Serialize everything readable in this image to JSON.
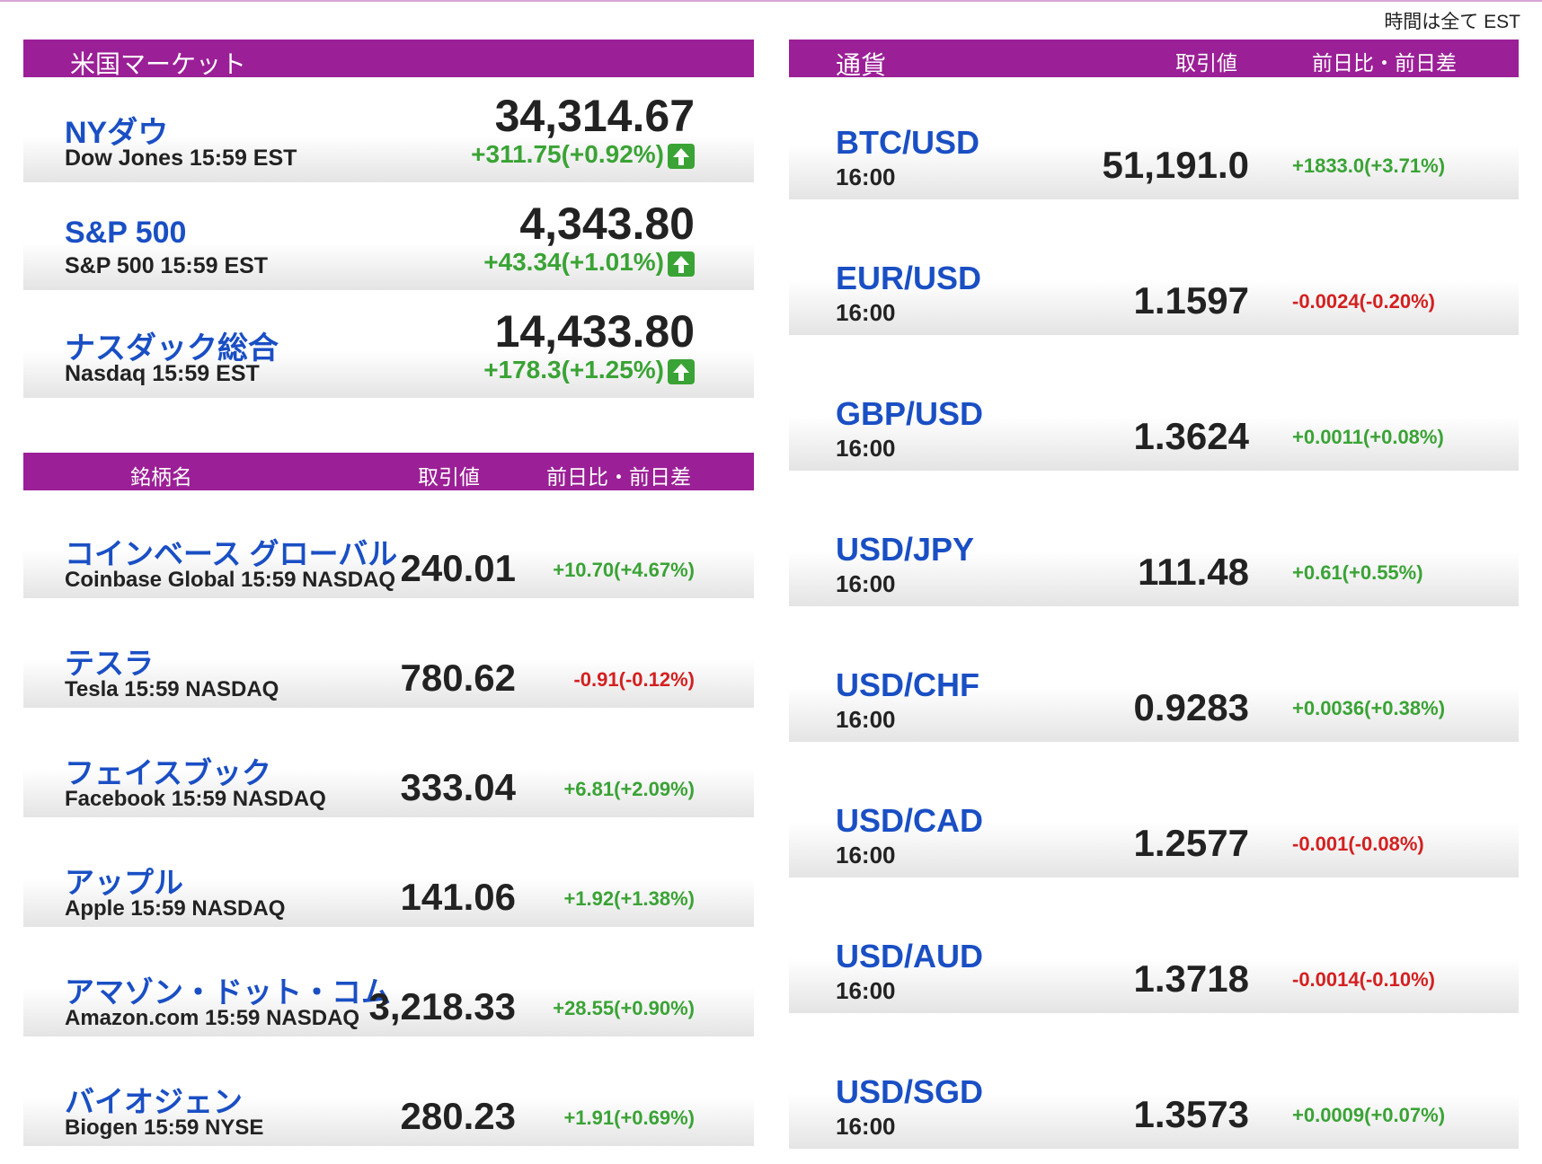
{
  "note": "時間は全て EST",
  "us_market": {
    "header": "米国マーケット",
    "items": [
      {
        "name": "NYダウ",
        "sub": "Dow Jones 15:59 EST",
        "value": "34,314.67",
        "change": "+311.75(+0.92%)"
      },
      {
        "name": "S&P 500",
        "sub": "S&P 500 15:59 EST",
        "value": "4,343.80",
        "change": "+43.34(+1.01%)"
      },
      {
        "name": "ナスダック総合",
        "sub": "Nasdaq 15:59 EST",
        "value": "14,433.80",
        "change": "+178.3(+1.25%)"
      }
    ]
  },
  "stocks": {
    "headers": [
      "銘柄名",
      "取引値",
      "前日比・前日差"
    ],
    "rows": [
      {
        "name": "コインベース グローバル",
        "sub": "Coinbase Global 15:59  NASDAQ",
        "value": "240.01",
        "change": "+10.70(+4.67%)"
      },
      {
        "name": "テスラ",
        "sub": "Tesla 15:59  NASDAQ",
        "value": "780.62",
        "change": "-0.91(-0.12%)"
      },
      {
        "name": "フェイスブック",
        "sub": "Facebook 15:59  NASDAQ",
        "value": "333.04",
        "change": "+6.81(+2.09%)"
      },
      {
        "name": "アップル",
        "sub": "Apple 15:59  NASDAQ",
        "value": "141.06",
        "change": "+1.92(+1.38%)"
      },
      {
        "name": "アマゾン・ドット・コム",
        "sub": "Amazon.com 15:59  NASDAQ",
        "value": "3,218.33",
        "change": "+28.55(+0.90%)"
      },
      {
        "name": "バイオジェン",
        "sub": "Biogen 15:59  NYSE",
        "value": "280.23",
        "change": "+1.91(+0.69%)"
      }
    ]
  },
  "currency": {
    "headers": [
      "通貨",
      "取引値",
      "前日比・前日差"
    ],
    "rows": [
      {
        "name": "BTC/USD",
        "sub": "16:00",
        "value": "51,191.0",
        "change": "+1833.0(+3.71%)"
      },
      {
        "name": "EUR/USD",
        "sub": "16:00",
        "value": "1.1597",
        "change": "-0.0024(-0.20%)"
      },
      {
        "name": "GBP/USD",
        "sub": "16:00",
        "value": "1.3624",
        "change": "+0.0011(+0.08%)"
      },
      {
        "name": "USD/JPY",
        "sub": "16:00",
        "value": "111.48",
        "change": "+0.61(+0.55%)"
      },
      {
        "name": "USD/CHF",
        "sub": "16:00",
        "value": "0.9283",
        "change": "+0.0036(+0.38%)"
      },
      {
        "name": "USD/CAD",
        "sub": "16:00",
        "value": "1.2577",
        "change": "-0.001(-0.08%)"
      },
      {
        "name": "USD/AUD",
        "sub": "16:00",
        "value": "1.3718",
        "change": "-0.0014(-0.10%)"
      },
      {
        "name": "USD/SGD",
        "sub": "16:00",
        "value": "1.3573",
        "change": "+0.0009(+0.07%)"
      }
    ]
  }
}
